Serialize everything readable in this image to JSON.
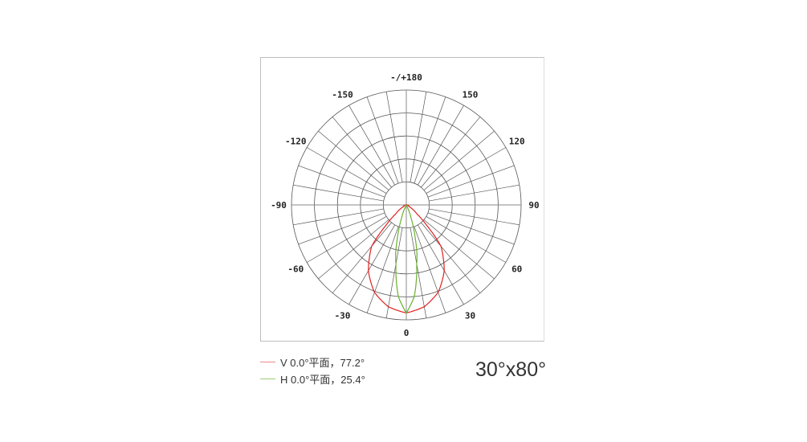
{
  "chart_data": {
    "type": "polar",
    "angle_ticks": [
      "0",
      "30",
      "60",
      "90",
      "120",
      "150",
      "-/+180",
      "-150",
      "-120",
      "-90",
      "-60",
      "-30"
    ],
    "angle_tick_values": [
      0,
      30,
      60,
      90,
      120,
      150,
      180,
      -150,
      -120,
      -90,
      -60,
      -30
    ],
    "zero_direction": "bottom",
    "radial_rings": 5,
    "radial_spokes_step_deg": 10,
    "grid": true,
    "legend_placement": "bottom-left",
    "series": [
      {
        "name": "V 0.0°平面，77.2°",
        "color": "#e02020",
        "angles": [
          0,
          10,
          20,
          30,
          35,
          40,
          45,
          50,
          60,
          90
        ],
        "values": [
          0.94,
          0.9,
          0.81,
          0.66,
          0.56,
          0.47,
          0.25,
          0.12,
          0.03,
          0
        ]
      },
      {
        "name": "H 0.0°平面，25.4°",
        "color": "#6ab030",
        "angles": [
          0,
          5,
          8,
          10,
          12.7,
          15,
          20,
          25,
          30,
          90
        ],
        "values": [
          0.94,
          0.8,
          0.64,
          0.52,
          0.42,
          0.3,
          0.12,
          0.03,
          0,
          0
        ]
      }
    ]
  },
  "beam_label": "30°x80°"
}
